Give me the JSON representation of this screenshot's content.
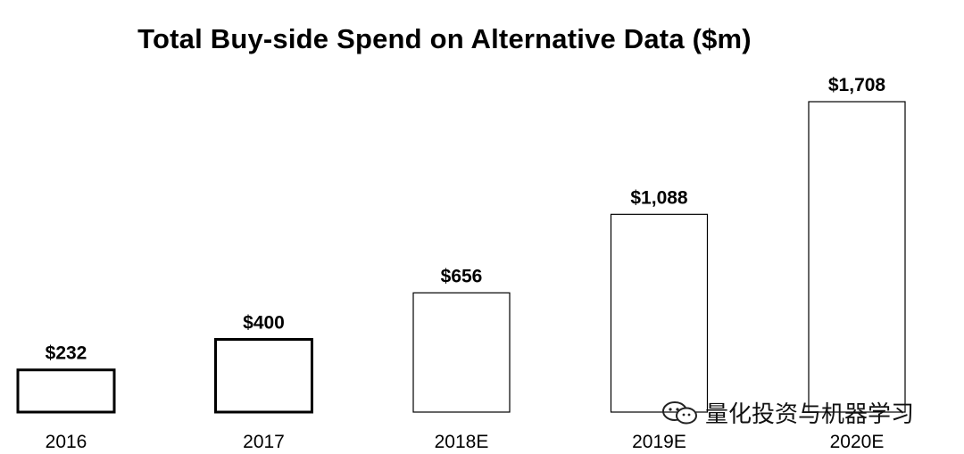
{
  "chart_data": {
    "type": "bar",
    "title": "Total Buy-side Spend on Alternative Data ($m)",
    "categories": [
      "2016",
      "2017",
      "2018E",
      "2019E",
      "2020E"
    ],
    "values": [
      232,
      400,
      656,
      1088,
      1708
    ],
    "value_labels": [
      "$232",
      "$400",
      "$656",
      "$1,088",
      "$1,708"
    ],
    "xlabel": "",
    "ylabel": "",
    "ylim": [
      0,
      1708
    ],
    "grid": false,
    "legend": "none"
  },
  "watermark": {
    "text": "量化投资与机器学习",
    "icon": "wechat-logo-icon"
  }
}
